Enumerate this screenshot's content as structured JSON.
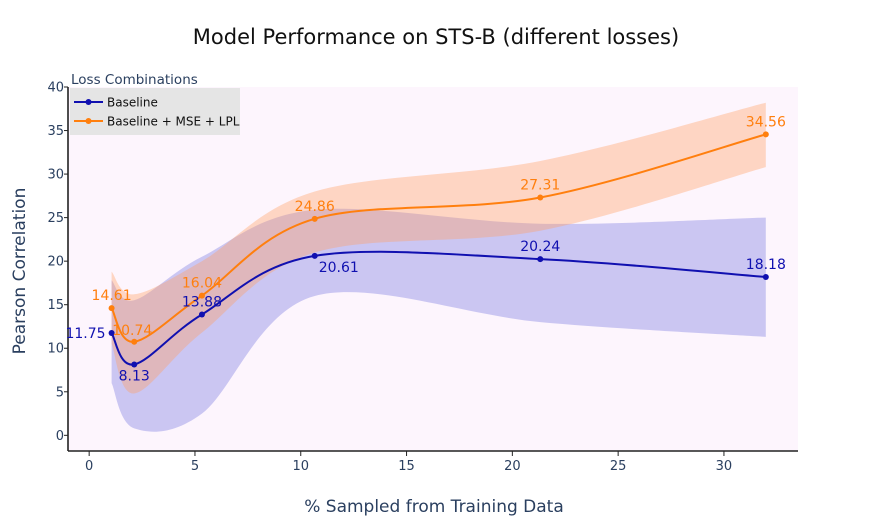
{
  "chart_data": {
    "type": "line",
    "title": "Model Performance on STS-B (different losses)",
    "xlabel": "% Sampled from Training Data",
    "ylabel": "Pearson Correlation",
    "xlim": [
      -1,
      33.5
    ],
    "ylim": [
      -1.8,
      40
    ],
    "xticks": [
      0,
      5,
      10,
      15,
      20,
      25,
      30
    ],
    "yticks": [
      0,
      5,
      10,
      15,
      20,
      25,
      30,
      35,
      40
    ],
    "xtick_labels": [
      "0",
      "5",
      "10",
      "15",
      "20",
      "25",
      "30"
    ],
    "ytick_labels": [
      "0",
      "5",
      "10",
      "15",
      "20",
      "25",
      "30",
      "35",
      "40"
    ],
    "legend": {
      "title": "Loss Combinations",
      "position": "top-left"
    },
    "x": [
      1.06,
      2.13,
      5.33,
      10.66,
      21.32,
      31.98
    ],
    "series": [
      {
        "name": "Baseline",
        "color": "#1010b0",
        "band_color": "rgba(99,99,222,0.32)",
        "values": [
          11.75,
          8.13,
          13.88,
          20.61,
          20.24,
          18.18
        ],
        "value_labels": [
          "11.75",
          "8.13",
          "13.88",
          "20.61",
          "20.24",
          "18.18"
        ],
        "label_positions": [
          "left",
          "below",
          "above",
          "below-right",
          "above",
          "above"
        ],
        "upper": [
          17.8,
          15.5,
          20.5,
          25.9,
          24.3,
          25.0
        ],
        "lower": [
          6.0,
          0.8,
          2.5,
          16.0,
          13.0,
          11.3
        ]
      },
      {
        "name": "Baseline + MSE + LPL",
        "color": "#ff7f0e",
        "band_color": "rgba(255,160,100,0.38)",
        "values": [
          14.61,
          10.74,
          16.04,
          24.86,
          27.31,
          34.56
        ],
        "value_labels": [
          "14.61",
          "10.74",
          "16.04",
          "24.86",
          "27.31",
          "34.56"
        ],
        "label_positions": [
          "above",
          "right",
          "above",
          "above",
          "above",
          "above"
        ],
        "upper": [
          18.8,
          16.2,
          20.0,
          28.0,
          31.5,
          38.2
        ],
        "lower": [
          10.5,
          4.8,
          11.8,
          21.0,
          23.5,
          30.8
        ]
      }
    ]
  }
}
